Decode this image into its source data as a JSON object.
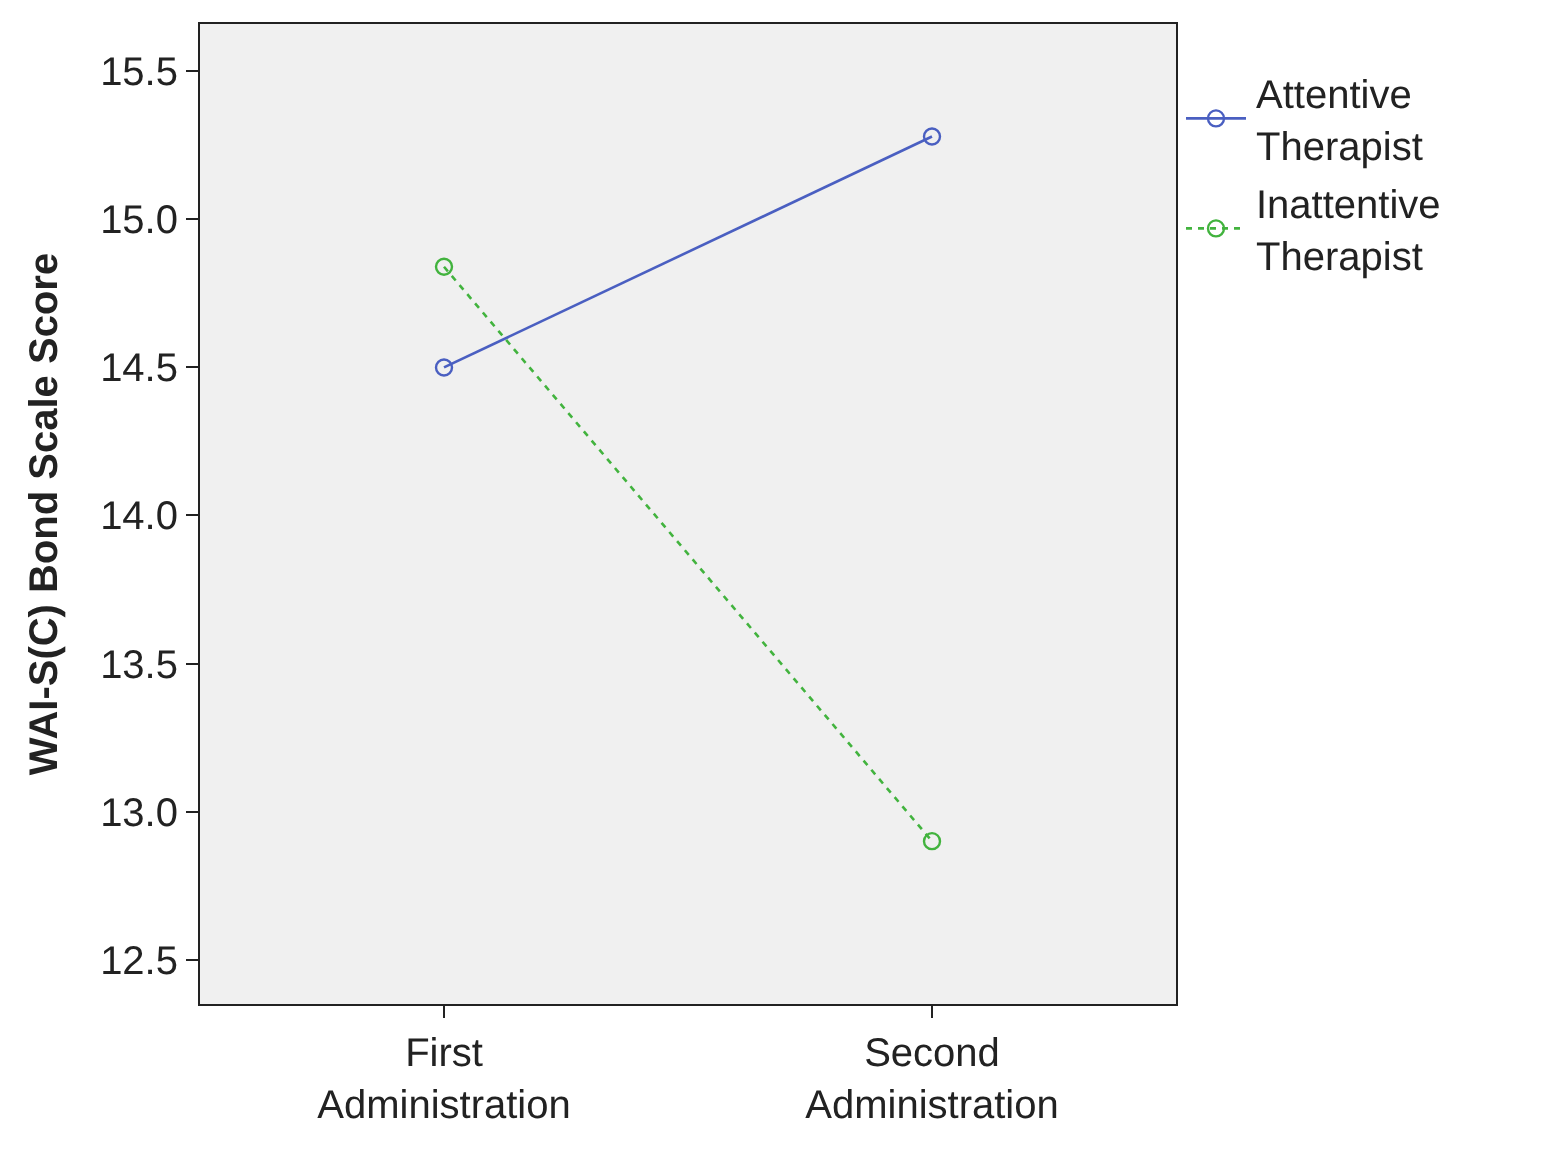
{
  "chart_data": {
    "type": "line",
    "ylabel": "WAI-S(C) Bond Scale Score",
    "categories": [
      "First Administration",
      "Second Administration"
    ],
    "series": [
      {
        "name": "Attentive Therapist",
        "color": "#4a5fc1",
        "values": [
          14.5,
          15.28
        ],
        "line_style": "solid"
      },
      {
        "name": "Inattentive Therapist",
        "color": "#42b33e",
        "values": [
          14.84,
          12.9
        ],
        "line_style": "dotted"
      }
    ],
    "ylim": [
      12.35,
      15.66
    ],
    "yticks": [
      {
        "value": 12.5,
        "label": "12.5"
      },
      {
        "value": 13,
        "label": "13.0"
      },
      {
        "value": 13.5,
        "label": "13.5"
      },
      {
        "value": 14,
        "label": "14.0"
      },
      {
        "value": 14.5,
        "label": "14.5"
      },
      {
        "value": 15,
        "label": "15.0"
      },
      {
        "value": 15.5,
        "label": "15.5"
      }
    ],
    "grid": false,
    "legend": "right",
    "marker": "circle"
  }
}
